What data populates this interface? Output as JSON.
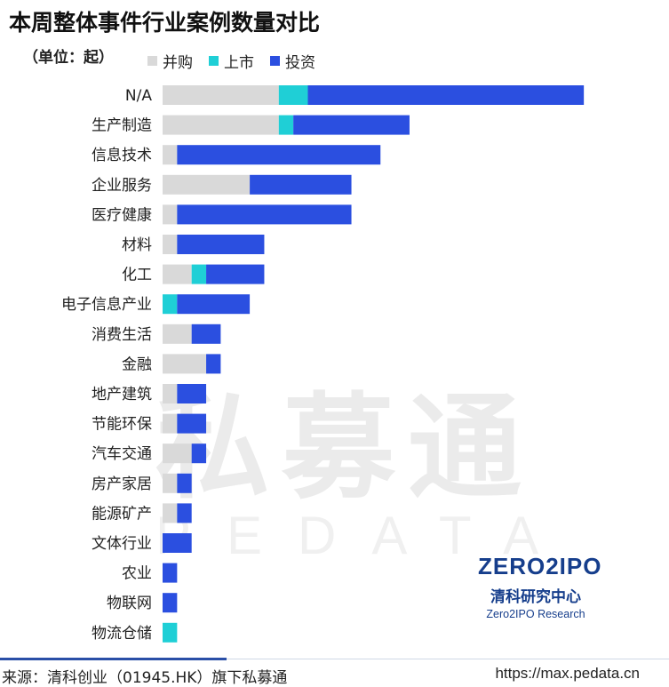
{
  "title": "本周整体事件行业案例数量对比",
  "unit": "（单位：起）",
  "colors": {
    "merger": "#d9d9d9",
    "ipo": "#1fcfd6",
    "investment": "#2b4fe0"
  },
  "watermark": {
    "cn": "私募通",
    "en": "PEDATA"
  },
  "logo": {
    "main": "ZERO2IPO",
    "cn": "清科研究中心",
    "en": "Zero2IPO Research"
  },
  "footer": {
    "source": "来源：清科创业（01945.HK）旗下私募通",
    "url": "https://max.pedata.cn"
  },
  "chart_data": {
    "type": "bar",
    "orientation": "horizontal",
    "stacked": true,
    "legend_position": "top",
    "categories": [
      "N/A",
      "生产制造",
      "信息技术",
      "企业服务",
      "医疗健康",
      "材料",
      "化工",
      "电子信息产业",
      "消费生活",
      "金融",
      "地产建筑",
      "节能环保",
      "汽车交通",
      "房产家居",
      "能源矿产",
      "文体行业",
      "农业",
      "物联网",
      "物流仓储"
    ],
    "series": [
      {
        "name": "并购",
        "values": [
          8,
          8,
          1,
          6,
          1,
          1,
          2,
          0,
          2,
          3,
          1,
          1,
          2,
          1,
          1,
          0,
          0,
          0,
          0
        ]
      },
      {
        "name": "上市",
        "values": [
          2,
          1,
          0,
          0,
          0,
          0,
          1,
          1,
          0,
          0,
          0,
          0,
          0,
          0,
          0,
          0,
          0,
          0,
          1
        ]
      },
      {
        "name": "投资",
        "values": [
          19,
          8,
          14,
          7,
          12,
          6,
          4,
          5,
          2,
          1,
          2,
          2,
          1,
          1,
          1,
          2,
          1,
          1,
          0
        ]
      }
    ]
  }
}
